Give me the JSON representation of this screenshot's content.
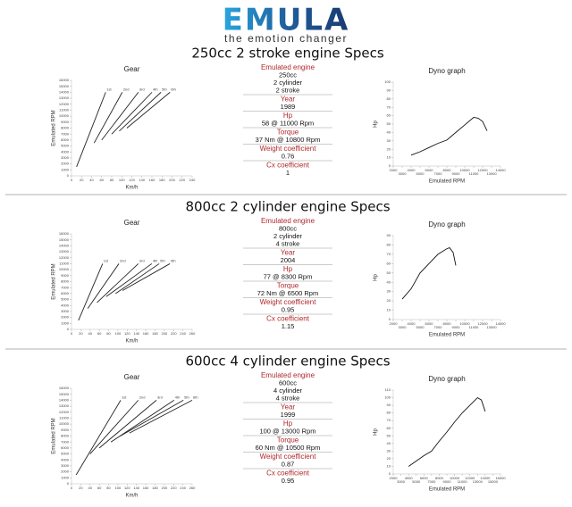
{
  "header": {
    "logo": "EMULA",
    "tagline": "the emotion changer"
  },
  "sections": [
    {
      "title": "250cc 2 stroke engine Specs",
      "specs": [
        {
          "label": "Emulated engine",
          "lines": [
            "250cc",
            "2 cylinder",
            "2 stroke"
          ]
        },
        {
          "label": "Year",
          "lines": [
            "1989"
          ]
        },
        {
          "label": "Hp",
          "lines": [
            "58 @ 11000 Rpm"
          ]
        },
        {
          "label": "Torque",
          "lines": [
            "37 Nm @ 10800 Rpm"
          ]
        },
        {
          "label": "Weight coefficient",
          "lines": [
            "0.76"
          ]
        },
        {
          "label": "Cx coefficient",
          "lines": [
            "1"
          ]
        }
      ],
      "gear_chart": {
        "type": "line",
        "title": "Gear",
        "x_label": "Km/h",
        "y_label": "Emulated RPM",
        "xlim": [
          0,
          240
        ],
        "xticks": [
          0,
          20,
          40,
          60,
          80,
          100,
          120,
          140,
          160,
          180,
          200,
          220,
          240
        ],
        "ylim": [
          0,
          16000
        ],
        "yticks": [
          0,
          1000,
          2000,
          3000,
          4000,
          5000,
          6000,
          7000,
          8000,
          9000,
          10000,
          11000,
          12000,
          13000,
          14000,
          15000,
          16000
        ],
        "color": "#222222",
        "series": [
          {
            "name": "1st",
            "x": [
              10,
              68
            ],
            "values": [
              1500,
              14000
            ]
          },
          {
            "name": "2nd",
            "x": [
              45,
              101
            ],
            "values": [
              5500,
              14000
            ]
          },
          {
            "name": "3rd",
            "x": [
              60,
              133
            ],
            "values": [
              6000,
              14000
            ]
          },
          {
            "name": "4th",
            "x": [
              80,
              160
            ],
            "values": [
              7000,
              14000
            ]
          },
          {
            "name": "5th",
            "x": [
              95,
              178
            ],
            "values": [
              7500,
              14000
            ]
          },
          {
            "name": "6th",
            "x": [
              110,
              196
            ],
            "values": [
              8000,
              14000
            ]
          }
        ]
      },
      "dyno_chart": {
        "type": "line",
        "title": "Dyno graph",
        "x_label": "Emulated RPM",
        "y_label": "Hp",
        "xlim": [
          2000,
          14000
        ],
        "xticks": [
          2000,
          3000,
          4000,
          5000,
          6000,
          7000,
          8000,
          9000,
          10000,
          11000,
          12000,
          13000,
          14000
        ],
        "ylim": [
          0,
          100
        ],
        "yticks": [
          0,
          10,
          20,
          30,
          40,
          50,
          60,
          70,
          80,
          90,
          100
        ],
        "color": "#111111",
        "x": [
          4000,
          5000,
          6000,
          7000,
          8000,
          9000,
          10000,
          11000,
          11500,
          12000,
          12500
        ],
        "values": [
          13,
          17,
          22,
          27,
          31,
          40,
          49,
          58,
          57,
          53,
          42
        ]
      }
    },
    {
      "title": "800cc 2 cylinder engine Specs",
      "specs": [
        {
          "label": "Emulated engine",
          "lines": [
            "800cc",
            "2 cylinder",
            "4 stroke"
          ]
        },
        {
          "label": "Year",
          "lines": [
            "2004"
          ]
        },
        {
          "label": "Hp",
          "lines": [
            "77 @ 8300 Rpm"
          ]
        },
        {
          "label": "Torque",
          "lines": [
            "72 Nm @ 6500 Rpm"
          ]
        },
        {
          "label": "Weight coefficient",
          "lines": [
            "0.95"
          ]
        },
        {
          "label": "Cx coefficient",
          "lines": [
            "1.15"
          ]
        }
      ],
      "gear_chart": {
        "type": "line",
        "title": "Gear",
        "x_label": "Km/h",
        "y_label": "Emulated RPM",
        "xlim": [
          0,
          260
        ],
        "xticks": [
          0,
          20,
          40,
          60,
          80,
          100,
          120,
          140,
          160,
          180,
          200,
          220,
          240,
          260
        ],
        "ylim": [
          0,
          16000
        ],
        "yticks": [
          0,
          1000,
          2000,
          3000,
          4000,
          5000,
          6000,
          7000,
          8000,
          9000,
          10000,
          11000,
          12000,
          13000,
          14000,
          15000,
          16000
        ],
        "color": "#222222",
        "series": [
          {
            "name": "1st",
            "x": [
              15,
              67
            ],
            "values": [
              1500,
              11000
            ]
          },
          {
            "name": "2nd",
            "x": [
              35,
              102
            ],
            "values": [
              3500,
              11000
            ]
          },
          {
            "name": "3rd",
            "x": [
              55,
              144
            ],
            "values": [
              4500,
              11000
            ]
          },
          {
            "name": "4th",
            "x": [
              75,
              173
            ],
            "values": [
              5500,
              11000
            ]
          },
          {
            "name": "5th",
            "x": [
              95,
              189
            ],
            "values": [
              6000,
              11000
            ]
          },
          {
            "name": "6th",
            "x": [
              110,
              212
            ],
            "values": [
              6500,
              11000
            ]
          }
        ]
      },
      "dyno_chart": {
        "type": "line",
        "title": "Dyno graph",
        "x_label": "Emulated RPM",
        "y_label": "Hp",
        "xlim": [
          2000,
          14000
        ],
        "xticks": [
          2000,
          3000,
          4000,
          5000,
          6000,
          7000,
          8000,
          9000,
          10000,
          11000,
          12000,
          13000,
          14000
        ],
        "ylim": [
          0,
          90
        ],
        "yticks": [
          0,
          10,
          20,
          30,
          40,
          50,
          60,
          70,
          80,
          90
        ],
        "color": "#111111",
        "x": [
          3000,
          4000,
          5000,
          6000,
          7000,
          7500,
          8000,
          8300,
          8700,
          9000
        ],
        "values": [
          22,
          33,
          50,
          60,
          70,
          73,
          76,
          77,
          72,
          58
        ]
      }
    },
    {
      "title": "600cc 4 cylinder engine Specs",
      "specs": [
        {
          "label": "Emulated engine",
          "lines": [
            "600cc",
            "4 cylinder",
            "4 stroke"
          ]
        },
        {
          "label": "Year",
          "lines": [
            "1999"
          ]
        },
        {
          "label": "Hp",
          "lines": [
            "100 @ 13000 Rpm"
          ]
        },
        {
          "label": "Torque",
          "lines": [
            "60 Nm @ 10500 Rpm"
          ]
        },
        {
          "label": "Weight coefficient",
          "lines": [
            "0.87"
          ]
        },
        {
          "label": "Cx coefficient",
          "lines": [
            "0.95"
          ]
        }
      ],
      "gear_chart": {
        "type": "line",
        "title": "Gear",
        "x_label": "Km/h",
        "y_label": "Emulated RPM",
        "xlim": [
          0,
          260
        ],
        "xticks": [
          0,
          20,
          40,
          60,
          80,
          100,
          120,
          140,
          160,
          180,
          200,
          220,
          240,
          260
        ],
        "ylim": [
          0,
          16000
        ],
        "yticks": [
          0,
          1000,
          2000,
          3000,
          4000,
          5000,
          6000,
          7000,
          8000,
          9000,
          10000,
          11000,
          12000,
          13000,
          14000,
          15000,
          16000
        ],
        "color": "#222222",
        "series": [
          {
            "name": "1st",
            "x": [
              10,
              106
            ],
            "values": [
              1500,
              14000
            ]
          },
          {
            "name": "2nd",
            "x": [
              40,
              144
            ],
            "values": [
              5000,
              14000
            ]
          },
          {
            "name": "3rd",
            "x": [
              60,
              183
            ],
            "values": [
              6000,
              14000
            ]
          },
          {
            "name": "4th",
            "x": [
              85,
              221
            ],
            "values": [
              7000,
              14000
            ]
          },
          {
            "name": "5th",
            "x": [
              105,
              241
            ],
            "values": [
              8000,
              14000
            ]
          },
          {
            "name": "6th",
            "x": [
              125,
              260
            ],
            "values": [
              8500,
              14000
            ]
          }
        ]
      },
      "dyno_chart": {
        "type": "line",
        "title": "Dyno graph",
        "x_label": "Emulated RPM",
        "y_label": "Hp",
        "xlim": [
          2000,
          16000
        ],
        "xticks": [
          2000,
          3000,
          4000,
          5000,
          6000,
          7000,
          8000,
          9000,
          10000,
          11000,
          12000,
          13000,
          14000,
          15000,
          16000
        ],
        "ylim": [
          0,
          110
        ],
        "yticks": [
          0,
          10,
          20,
          30,
          40,
          50,
          60,
          70,
          80,
          90,
          100,
          110
        ],
        "color": "#111111",
        "x": [
          4000,
          5000,
          6000,
          7000,
          8000,
          9000,
          10000,
          11000,
          12000,
          13000,
          13500,
          14000
        ],
        "values": [
          10,
          17,
          24,
          30,
          43,
          55,
          68,
          80,
          90,
          100,
          97,
          82
        ]
      }
    }
  ]
}
